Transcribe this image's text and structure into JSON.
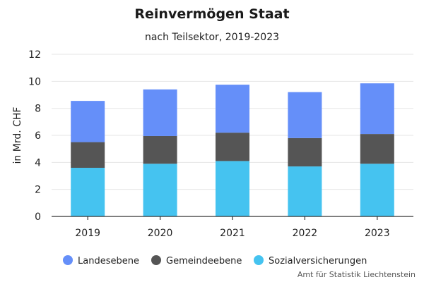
{
  "chart_data": {
    "type": "bar",
    "stacked": true,
    "title": "Reinvermögen Staat",
    "subtitle": "nach Teilsektor, 2019-2023",
    "ylabel": "in Mrd. CHF",
    "xlabel": "",
    "ylim": [
      0,
      12
    ],
    "yticks": [
      "0",
      "2",
      "4",
      "6",
      "8",
      "10",
      "12"
    ],
    "categories": [
      "2019",
      "2020",
      "2021",
      "2022",
      "2023"
    ],
    "series": [
      {
        "name": "Sozialversicherungen",
        "color": "#45c3f0",
        "values": [
          3.6,
          3.9,
          4.1,
          3.7,
          3.9
        ]
      },
      {
        "name": "Gemeindeebene",
        "color": "#555555",
        "values": [
          1.9,
          2.05,
          2.1,
          2.1,
          2.2
        ]
      },
      {
        "name": "Landesebene",
        "color": "#658ff9",
        "values": [
          3.05,
          3.45,
          3.55,
          3.4,
          3.75
        ]
      }
    ],
    "legend_order": [
      "Landesebene",
      "Gemeindeebene",
      "Sozialversicherungen"
    ],
    "grid": true,
    "legend_position": "bottom"
  },
  "source": "Amt für Statistik Liechtenstein"
}
